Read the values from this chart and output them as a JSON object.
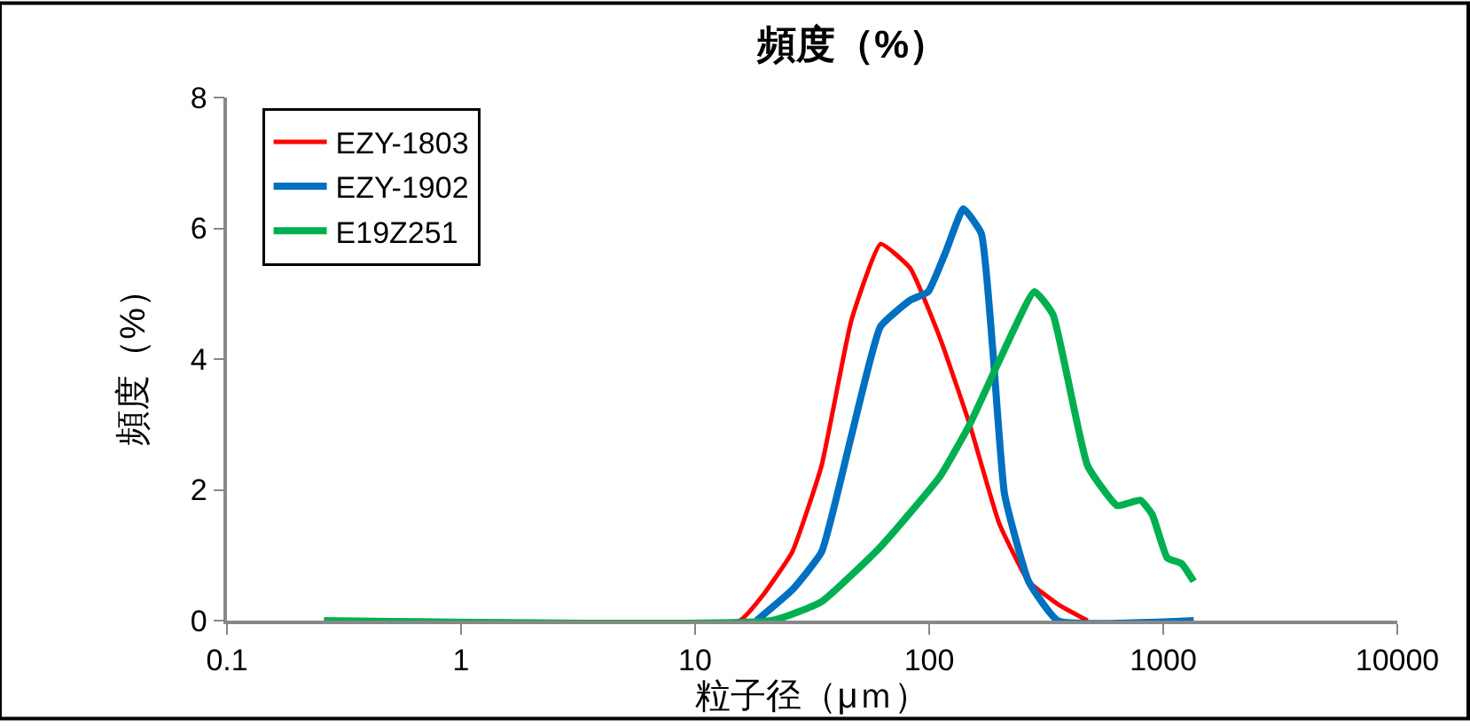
{
  "chart_data": {
    "type": "line",
    "title": "頻度（%）",
    "xlabel": "粒子径（μｍ）",
    "ylabel": "頻度（%）",
    "log": "x",
    "xlim": [
      0.1,
      10000
    ],
    "xticks": [
      0.1,
      1,
      10,
      100,
      1000,
      10000
    ],
    "ylim": [
      0,
      8
    ],
    "yticks": [
      0,
      2,
      4,
      6,
      8
    ],
    "legend": "top left",
    "marker": "none",
    "line_style": "solid",
    "series": [
      {
        "name": "EZY-1803",
        "color": "#ff0000",
        "x": [
          0.26,
          15.5,
          19.4,
          26,
          34.7,
          46.5,
          62,
          83,
          111,
          149,
          199,
          266,
          355,
          475
        ],
        "values": [
          0,
          0,
          0.38,
          1.05,
          2.37,
          4.59,
          5.76,
          5.39,
          4.33,
          3.0,
          1.49,
          0.6,
          0.25,
          0
        ]
      },
      {
        "name": "EZY-1902",
        "color": "#0070c0",
        "x": [
          18.3,
          26,
          34.7,
          46.5,
          62,
          83,
          99,
          118,
          140,
          167,
          187,
          210,
          266,
          355,
          1350
        ],
        "values": [
          0,
          0.47,
          1.05,
          2.82,
          4.5,
          4.9,
          5.03,
          5.65,
          6.3,
          5.92,
          4.14,
          1.93,
          0.6,
          0,
          0
        ]
      },
      {
        "name": "E19Z251",
        "color": "#00b050",
        "x": [
          0.26,
          21.2,
          34.7,
          62,
          111,
          149,
          199,
          282,
          338,
          475,
          635,
          800,
          898,
          1040,
          1200,
          1350
        ],
        "values": [
          0,
          0,
          0.29,
          1.13,
          2.2,
          3.0,
          3.97,
          5.03,
          4.68,
          2.37,
          1.76,
          1.84,
          1.62,
          0.96,
          0.87,
          0.6
        ]
      }
    ]
  }
}
